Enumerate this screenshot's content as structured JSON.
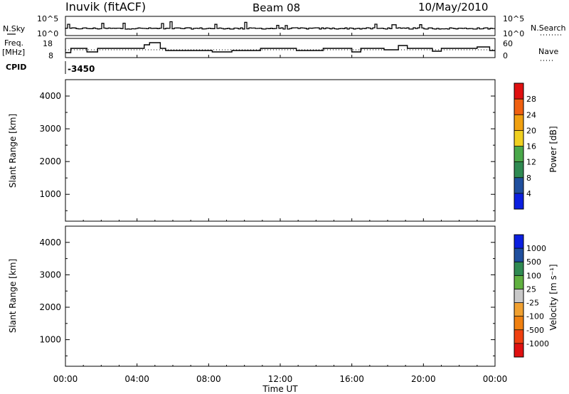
{
  "header": {
    "station": "Inuvik (fitACF)",
    "beam": "Beam 08",
    "date": "10/May/2010"
  },
  "noise_panel": {
    "left_label": "N.Sky",
    "right_label": "N.Search",
    "left_ticks": [
      "10^5",
      "10^0"
    ],
    "right_ticks": [
      "10^5",
      "10^0"
    ]
  },
  "freq_panel": {
    "left_label_1": "Freq.",
    "left_label_2": "[MHz]",
    "right_label": "Nave",
    "left_ticks": [
      "18",
      "8"
    ],
    "right_ticks": [
      "60",
      "0"
    ]
  },
  "cpid": {
    "label": "CPID",
    "value": "-3450"
  },
  "time_axis": {
    "title": "Time UT",
    "ticks": [
      "00:00",
      "04:00",
      "08:00",
      "12:00",
      "16:00",
      "20:00",
      "00:00"
    ]
  },
  "colors": {
    "power_scale": [
      "#0b1fe0",
      "#1f4f9e",
      "#2f8a52",
      "#4aa84a",
      "#f0d020",
      "#f0a010",
      "#f06010",
      "#e01010"
    ],
    "velocity_scale": [
      "#e01010",
      "#f04010",
      "#f08010",
      "#f0a030",
      "#c8c8c8",
      "#60b040",
      "#2f8a52",
      "#1f4f9e",
      "#0b1fe0"
    ]
  },
  "chart_data": [
    {
      "type": "heatmap",
      "name": "power",
      "ylabel": "Slant Range [km]",
      "ylim": [
        180,
        4500
      ],
      "y_ticks": [
        "4000",
        "3000",
        "2000",
        "1000"
      ],
      "xlim_hours": [
        0,
        24
      ],
      "colorbar": {
        "label": "Power [dB]",
        "range": [
          0,
          32
        ],
        "ticks": [
          "28",
          "24",
          "20",
          "16",
          "12",
          "8",
          "4"
        ]
      }
    },
    {
      "type": "heatmap",
      "name": "velocity",
      "ylabel": "Slant Range [km]",
      "ylim": [
        180,
        4500
      ],
      "y_ticks": [
        "4000",
        "3000",
        "2000",
        "1000"
      ],
      "xlim_hours": [
        0,
        24
      ],
      "colorbar": {
        "label": "Velocity [m s⁻¹]",
        "ticks": [
          "1000",
          "500",
          "100",
          "25",
          "-25",
          "-100",
          "-500",
          "-1000"
        ]
      }
    }
  ]
}
